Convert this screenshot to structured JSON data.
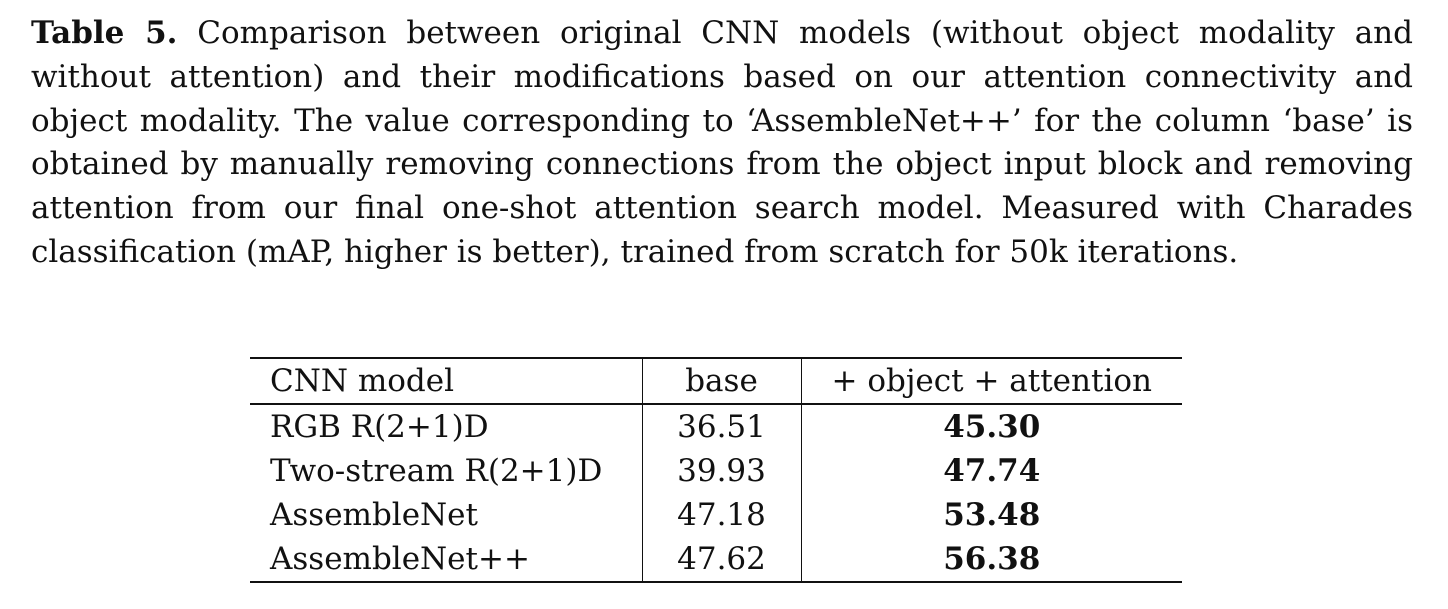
{
  "caption": {
    "label": "Table 5.",
    "text": "Comparison between original CNN models (without object modality and without attention) and their modifications based on our attention connectivity and object modality. The value corresponding to ‘AssembleNet++’ for the column ‘base’ is obtained by manually removing connections from the object input block and removing attention from our final one-shot attention search model. Measured with Charades classification (mAP, higher is better), trained from scratch for 50k iterations."
  },
  "table": {
    "headers": [
      "CNN model",
      "base",
      "+ object + attention"
    ],
    "rows": [
      {
        "model": "RGB R(2+1)D",
        "base": "36.51",
        "object_attention": "45.30"
      },
      {
        "model": "Two-stream R(2+1)D",
        "base": "39.93",
        "object_attention": "47.74"
      },
      {
        "model": "AssembleNet",
        "base": "47.18",
        "object_attention": "53.48"
      },
      {
        "model": "AssembleNet++",
        "base": "47.62",
        "object_attention": "56.38"
      }
    ]
  }
}
